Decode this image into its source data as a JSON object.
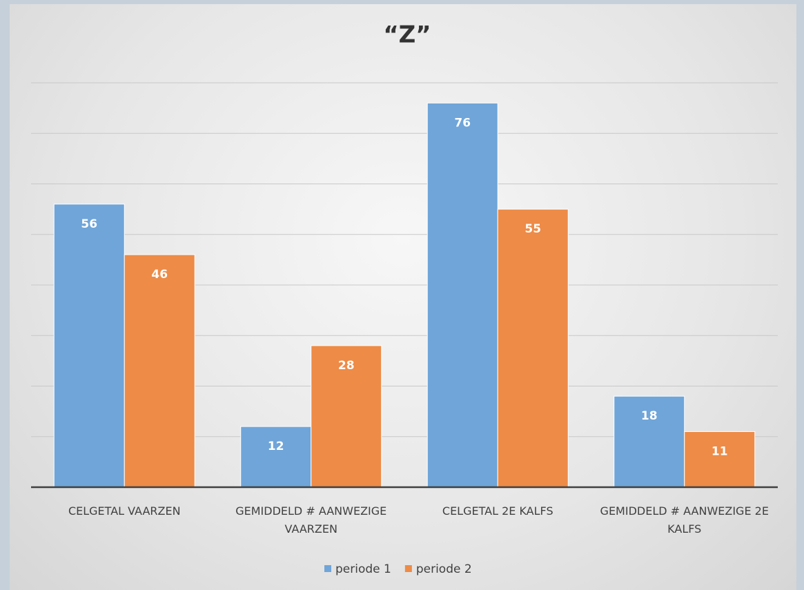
{
  "chart_data": {
    "type": "bar",
    "title": "“Z”",
    "categories": [
      "CELGETAL VAARZEN",
      "GEMIDDELD # AANWEZIGE VAARZEN",
      "CELGETAL 2E KALFS",
      "GEMIDDELD # AANWEZIGE 2E KALFS"
    ],
    "series": [
      {
        "name": "periode 1",
        "color": "#6fa5d9",
        "values": [
          56,
          12,
          76,
          18
        ]
      },
      {
        "name": "periode 2",
        "color": "#ed8b47",
        "values": [
          46,
          28,
          55,
          11
        ]
      }
    ],
    "ylim": [
      0,
      80
    ],
    "yticks": [
      0,
      10,
      20,
      30,
      40,
      50,
      60,
      70,
      80
    ],
    "grid": true,
    "legend": "bottom"
  }
}
